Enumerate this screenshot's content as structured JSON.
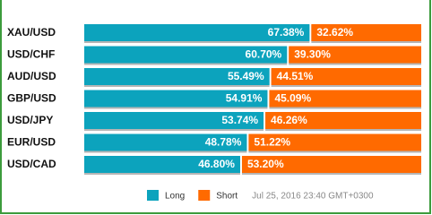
{
  "chart_data": {
    "type": "stacked-bar-100",
    "categories": [
      "XAU/USD",
      "USD/CHF",
      "AUD/USD",
      "GBP/USD",
      "USD/JPY",
      "EUR/USD",
      "USD/CAD"
    ],
    "series": [
      {
        "name": "Long",
        "color": "#0ca3bd",
        "values": [
          67.38,
          60.7,
          55.49,
          54.91,
          53.74,
          48.78,
          46.8
        ],
        "value_labels": [
          "67.38%",
          "60.70%",
          "55.49%",
          "54.91%",
          "53.74%",
          "48.78%",
          "46.80%"
        ]
      },
      {
        "name": "Short",
        "color": "#ff6a00",
        "values": [
          32.62,
          39.3,
          44.51,
          45.09,
          46.26,
          51.22,
          53.2
        ],
        "value_labels": [
          "32.62%",
          "39.30%",
          "44.51%",
          "45.09%",
          "46.26%",
          "51.22%",
          "53.20%"
        ]
      }
    ],
    "annotation": "Jul 25, 2016 23:40 GMT+0300"
  }
}
